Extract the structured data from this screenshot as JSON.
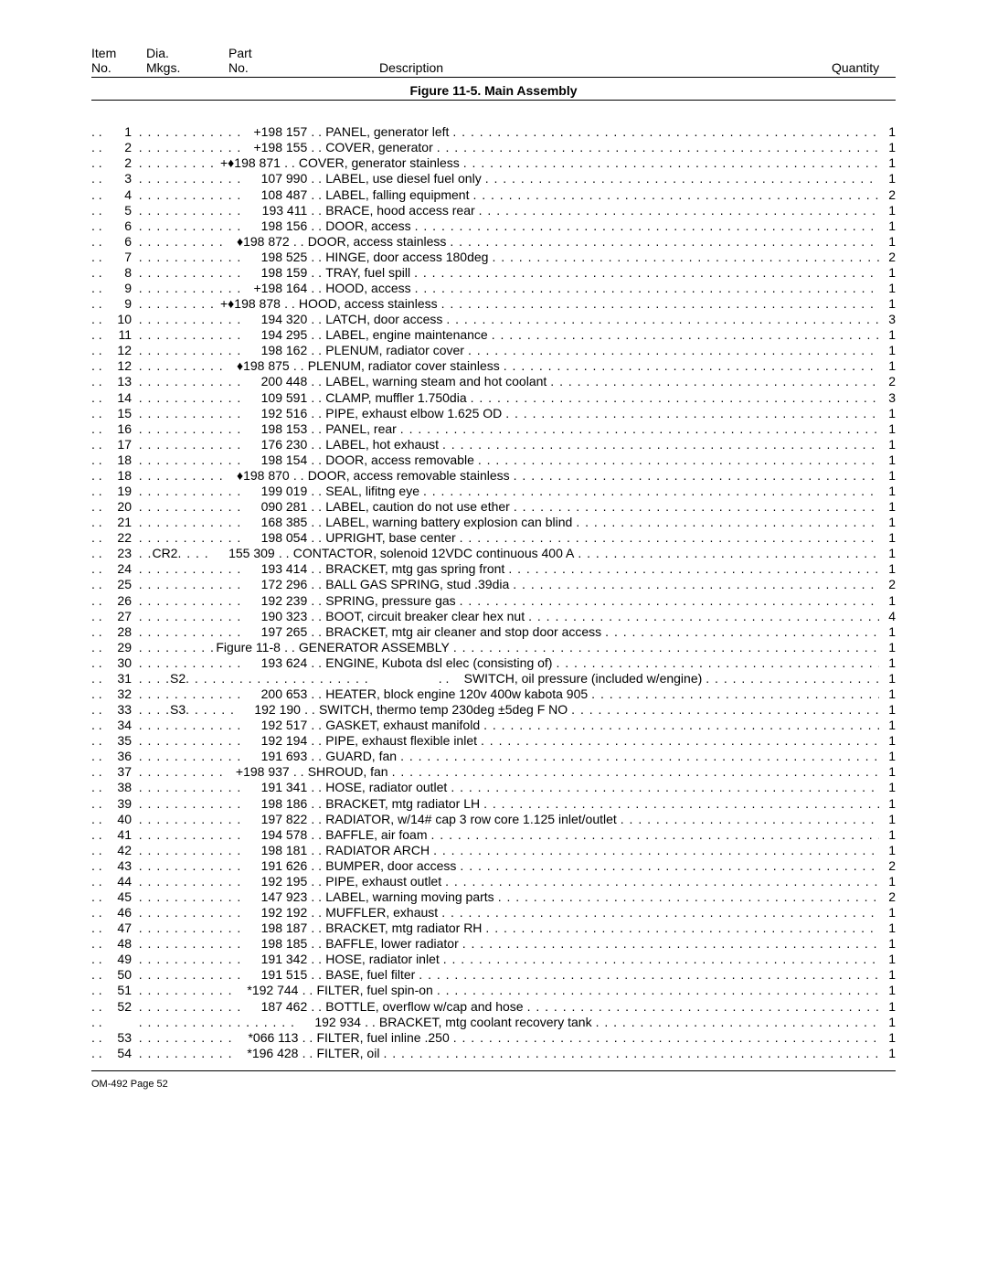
{
  "header": {
    "item_no_line1": "Item",
    "item_no_line2": "No.",
    "dia_line1": "Dia.",
    "dia_line2": "Mkgs.",
    "part_line1": "Part",
    "part_line2": "No.",
    "description": "Description",
    "quantity": "Quantity"
  },
  "figure_title": "Figure 11-5. Main Assembly",
  "leader_dots": ". . . . . . . . . . . . . . . . . . . . . . . . . . . . . . . . . . . . . . . . . . . . . . . . . . . . . . . . . . . . . . . . . . . . . . . . . . . . . . . . . . . . . . . . . . . . . . . . . . . .",
  "rows": [
    {
      "item": "1",
      "dia": "",
      "part": "+198 157",
      "desc": "PANEL, generator left",
      "qty": "1",
      "dots1": ". . . . . . . . . . . ."
    },
    {
      "item": "2",
      "dia": "",
      "part": "+198 155",
      "desc": "COVER, generator",
      "qty": "1",
      "dots1": ". . . . . . . . . . . ."
    },
    {
      "item": "2",
      "dia": "",
      "part": "+♦198 871",
      "desc": "COVER, generator stainless",
      "qty": "1",
      "dots1": ". . . . . . . . ."
    },
    {
      "item": "3",
      "dia": "",
      "part": "107 990",
      "desc": "LABEL, use diesel fuel only",
      "qty": "1",
      "dots1": ". . . . . . . . . . . ."
    },
    {
      "item": "4",
      "dia": "",
      "part": "108 487",
      "desc": "LABEL, falling equipment",
      "qty": "2",
      "dots1": ". . . . . . . . . . . ."
    },
    {
      "item": "5",
      "dia": "",
      "part": "193 411",
      "desc": "BRACE, hood access rear",
      "qty": "1",
      "dots1": ". . . . . . . . . . . ."
    },
    {
      "item": "6",
      "dia": "",
      "part": "198 156",
      "desc": "DOOR, access",
      "qty": "1",
      "dots1": ". . . . . . . . . . . ."
    },
    {
      "item": "6",
      "dia": "",
      "part": "♦198 872",
      "desc": "DOOR, access stainless",
      "qty": "1",
      "dots1": ". . . . . . . . . ."
    },
    {
      "item": "7",
      "dia": "",
      "part": "198 525",
      "desc": "HINGE, door access 180deg",
      "qty": "2",
      "dots1": ". . . . . . . . . . . ."
    },
    {
      "item": "8",
      "dia": "",
      "part": "198 159",
      "desc": "TRAY, fuel spill",
      "qty": "1",
      "dots1": ". . . . . . . . . . . ."
    },
    {
      "item": "9",
      "dia": "",
      "part": "+198 164",
      "desc": "HOOD, access",
      "qty": "1",
      "dots1": ". . . . . . . . . . . ."
    },
    {
      "item": "9",
      "dia": "",
      "part": "+♦198 878",
      "desc": "HOOD, access stainless",
      "qty": "1",
      "dots1": ". . . . . . . . ."
    },
    {
      "item": "10",
      "dia": "",
      "part": "194 320",
      "desc": "LATCH, door access",
      "qty": "3",
      "dots1": ". . . . . . . . . . . ."
    },
    {
      "item": "11",
      "dia": "",
      "part": "194 295",
      "desc": "LABEL, engine maintenance",
      "qty": "1",
      "dots1": ". . . . . . . . . . . ."
    },
    {
      "item": "12",
      "dia": "",
      "part": "198 162",
      "desc": "PLENUM, radiator cover",
      "qty": "1",
      "dots1": ". . . . . . . . . . . ."
    },
    {
      "item": "12",
      "dia": "",
      "part": "♦198 875",
      "desc": "PLENUM, radiator cover stainless",
      "qty": "1",
      "dots1": ". . . . . . . . . ."
    },
    {
      "item": "13",
      "dia": "",
      "part": "200 448",
      "desc": "LABEL, warning steam and hot coolant",
      "qty": "2",
      "dots1": ". . . . . . . . . . . ."
    },
    {
      "item": "14",
      "dia": "",
      "part": "109 591",
      "desc": "CLAMP, muffler 1.750dia",
      "qty": "3",
      "dots1": ". . . . . . . . . . . ."
    },
    {
      "item": "15",
      "dia": "",
      "part": "192 516",
      "desc": "PIPE, exhaust elbow 1.625 OD",
      "qty": "1",
      "dots1": ". . . . . . . . . . . ."
    },
    {
      "item": "16",
      "dia": "",
      "part": "198 153",
      "desc": "PANEL, rear",
      "qty": "1",
      "dots1": ". . . . . . . . . . . ."
    },
    {
      "item": "17",
      "dia": "",
      "part": "176 230",
      "desc": "LABEL, hot exhaust",
      "qty": "1",
      "dots1": ". . . . . . . . . . . ."
    },
    {
      "item": "18",
      "dia": "",
      "part": "198 154",
      "desc": "DOOR, access removable",
      "qty": "1",
      "dots1": ". . . . . . . . . . . ."
    },
    {
      "item": "18",
      "dia": "",
      "part": "♦198 870",
      "desc": "DOOR, access removable stainless",
      "qty": "1",
      "dots1": ". . . . . . . . . ."
    },
    {
      "item": "19",
      "dia": "",
      "part": "199 019",
      "desc": "SEAL, lifitng eye",
      "qty": "1",
      "dots1": ". . . . . . . . . . . ."
    },
    {
      "item": "20",
      "dia": "",
      "part": "090 281",
      "desc": "LABEL, caution do not use ether",
      "qty": "1",
      "dots1": ". . . . . . . . . . . ."
    },
    {
      "item": "21",
      "dia": "",
      "part": "168 385",
      "desc": "LABEL, warning battery explosion can blind",
      "qty": "1",
      "dots1": ". . . . . . . . . . . ."
    },
    {
      "item": "22",
      "dia": "",
      "part": "198 054",
      "desc": "UPRIGHT, base center",
      "qty": "1",
      "dots1": ". . . . . . . . . . . ."
    },
    {
      "item": "23",
      "dia": "CR2",
      "part": "155 309",
      "desc": "CONTACTOR, solenoid 12VDC continuous 400 A",
      "qty": "1",
      "dots1": ". .",
      "dots2": ". . . ."
    },
    {
      "item": "24",
      "dia": "",
      "part": "193 414",
      "desc": "BRACKET, mtg gas spring front",
      "qty": "1",
      "dots1": ". . . . . . . . . . . ."
    },
    {
      "item": "25",
      "dia": "",
      "part": "172 296",
      "desc": "BALL GAS SPRING, stud .39dia",
      "qty": "2",
      "dots1": ". . . . . . . . . . . ."
    },
    {
      "item": "26",
      "dia": "",
      "part": "192 239",
      "desc": "SPRING, pressure gas",
      "qty": "1",
      "dots1": ". . . . . . . . . . . ."
    },
    {
      "item": "27",
      "dia": "",
      "part": "190 323",
      "desc": "BOOT, circuit breaker clear hex nut",
      "qty": "4",
      "dots1": ". . . . . . . . . . . ."
    },
    {
      "item": "28",
      "dia": "",
      "part": "197 265",
      "desc": "BRACKET, mtg air cleaner and stop door access",
      "qty": "1",
      "dots1": ". . . . . . . . . . . ."
    },
    {
      "item": "29",
      "dia": "",
      "part": "Figure 11-8",
      "desc": "GENERATOR ASSEMBLY",
      "qty": "1",
      "dots1": ". . . . . . . . ."
    },
    {
      "item": "30",
      "dia": "",
      "part": "193 624",
      "desc": "ENGINE, Kubota dsl elec (consisting of)",
      "qty": "1",
      "dots1": ". . . . . . . . . . . ."
    },
    {
      "item": "31",
      "dia": "S2",
      "part": "",
      "desc": "SWITCH, oil pressure (included w/engine)",
      "qty": "1",
      "dots1": ". . . .",
      "dots2": ". . . . . . . . . . . . . . . . . . . . .",
      "indent": true
    },
    {
      "item": "32",
      "dia": "",
      "part": "200 653",
      "desc": "HEATER, block engine 120v 400w kabota 905",
      "qty": "1",
      "dots1": ". . . . . . . . . . . ."
    },
    {
      "item": "33",
      "dia": "S3",
      "part": "192 190",
      "desc": "SWITCH, thermo temp 230deg ±5deg F NO",
      "qty": "1",
      "dots1": ". . . .",
      "dots2": ". . . . . ."
    },
    {
      "item": "34",
      "dia": "",
      "part": "192 517",
      "desc": "GASKET, exhaust manifold",
      "qty": "1",
      "dots1": ". . . . . . . . . . . ."
    },
    {
      "item": "35",
      "dia": "",
      "part": "192 194",
      "desc": "PIPE, exhaust flexible inlet",
      "qty": "1",
      "dots1": ". . . . . . . . . . . ."
    },
    {
      "item": "36",
      "dia": "",
      "part": "191 693",
      "desc": "GUARD, fan",
      "qty": "1",
      "dots1": ". . . . . . . . . . . ."
    },
    {
      "item": "37",
      "dia": "",
      "part": "+198 937",
      "desc": "SHROUD, fan",
      "qty": "1",
      "dots1": ". . . . . . . . . ."
    },
    {
      "item": "38",
      "dia": "",
      "part": "191 341",
      "desc": "HOSE, radiator outlet",
      "qty": "1",
      "dots1": ". . . . . . . . . . . ."
    },
    {
      "item": "39",
      "dia": "",
      "part": "198 186",
      "desc": "BRACKET, mtg radiator LH",
      "qty": "1",
      "dots1": ". . . . . . . . . . . ."
    },
    {
      "item": "40",
      "dia": "",
      "part": "197 822",
      "desc": "RADIATOR, w/14# cap 3 row core 1.125 inlet/outlet",
      "qty": "1",
      "dots1": ". . . . . . . . . . . ."
    },
    {
      "item": "41",
      "dia": "",
      "part": "194 578",
      "desc": "BAFFLE, air foam",
      "qty": "1",
      "dots1": ". . . . . . . . . . . ."
    },
    {
      "item": "42",
      "dia": "",
      "part": "198 181",
      "desc": "RADIATOR ARCH",
      "qty": "1",
      "dots1": ". . . . . . . . . . . ."
    },
    {
      "item": "43",
      "dia": "",
      "part": "191 626",
      "desc": "BUMPER, door access",
      "qty": "2",
      "dots1": ". . . . . . . . . . . ."
    },
    {
      "item": "44",
      "dia": "",
      "part": "192 195",
      "desc": "PIPE, exhaust outlet",
      "qty": "1",
      "dots1": ". . . . . . . . . . . ."
    },
    {
      "item": "45",
      "dia": "",
      "part": "147 923",
      "desc": "LABEL, warning moving parts",
      "qty": "2",
      "dots1": ". . . . . . . . . . . ."
    },
    {
      "item": "46",
      "dia": "",
      "part": "192 192",
      "desc": "MUFFLER, exhaust",
      "qty": "1",
      "dots1": ". . . . . . . . . . . ."
    },
    {
      "item": "47",
      "dia": "",
      "part": "198 187",
      "desc": "BRACKET, mtg radiator RH",
      "qty": "1",
      "dots1": ". . . . . . . . . . . ."
    },
    {
      "item": "48",
      "dia": "",
      "part": "198 185",
      "desc": "BAFFLE, lower radiator",
      "qty": "1",
      "dots1": ". . . . . . . . . . . ."
    },
    {
      "item": "49",
      "dia": "",
      "part": "191 342",
      "desc": "HOSE, radiator inlet",
      "qty": "1",
      "dots1": ". . . . . . . . . . . ."
    },
    {
      "item": "50",
      "dia": "",
      "part": "191 515",
      "desc": "BASE, fuel filter",
      "qty": "1",
      "dots1": ". . . . . . . . . . . ."
    },
    {
      "item": "51",
      "dia": "",
      "part": "*192 744",
      "desc": "FILTER, fuel spin-on",
      "qty": "1",
      "dots1": ". . . . . . . . . . ."
    },
    {
      "item": "52",
      "dia": "",
      "part": "187 462",
      "desc": "BOTTLE, overflow w/cap and hose",
      "qty": "1",
      "dots1": ". . . . . . . . . . . ."
    },
    {
      "item": "",
      "dia": "",
      "part": "192 934",
      "desc": "BRACKET, mtg coolant recovery tank",
      "qty": "1",
      "dots1": ". . . . . . . . . . . . . . . . . ."
    },
    {
      "item": "53",
      "dia": "",
      "part": "*066 113",
      "desc": "FILTER, fuel inline .250",
      "qty": "1",
      "dots1": ". . . . . . . . . . ."
    },
    {
      "item": "54",
      "dia": "",
      "part": "*196 428",
      "desc": "FILTER, oil",
      "qty": "1",
      "dots1": ". . . . . . . . . . ."
    }
  ],
  "footer": "OM-492 Page 52"
}
